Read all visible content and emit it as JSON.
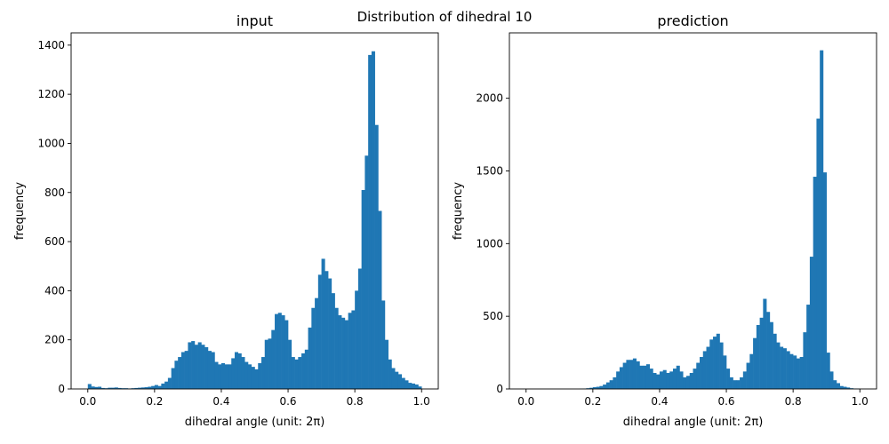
{
  "figure": {
    "title": "Distribution of dihedral 10"
  },
  "colors": {
    "bar": "#1f77b4",
    "axis": "#000000",
    "background": "#ffffff"
  },
  "chart_data": [
    {
      "type": "bar",
      "title": "input",
      "xlabel": "dihedral angle (unit: 2π)",
      "ylabel": "frequency",
      "xlim": [
        -0.05,
        1.05
      ],
      "ylim": [
        0,
        1450
      ],
      "xticks": [
        0.0,
        0.2,
        0.4,
        0.6,
        0.8,
        1.0
      ],
      "xtick_labels": [
        "0.0",
        "0.2",
        "0.4",
        "0.6",
        "0.8",
        "1.0"
      ],
      "yticks": [
        0,
        200,
        400,
        600,
        800,
        1000,
        1200,
        1400
      ],
      "ytick_labels": [
        "0",
        "200",
        "400",
        "600",
        "800",
        "1000",
        "1200",
        "1400"
      ],
      "grid": false,
      "bin_range": [
        0,
        1
      ],
      "bins": 100,
      "values": [
        20,
        10,
        8,
        9,
        4,
        3,
        5,
        5,
        6,
        4,
        3,
        3,
        2,
        3,
        4,
        5,
        6,
        7,
        9,
        12,
        16,
        12,
        22,
        30,
        45,
        85,
        115,
        130,
        150,
        155,
        190,
        195,
        180,
        190,
        180,
        170,
        155,
        150,
        110,
        100,
        105,
        100,
        100,
        125,
        150,
        145,
        130,
        110,
        100,
        90,
        80,
        105,
        130,
        200,
        205,
        240,
        305,
        310,
        300,
        280,
        200,
        130,
        120,
        130,
        145,
        160,
        250,
        330,
        370,
        465,
        530,
        480,
        450,
        390,
        330,
        300,
        290,
        280,
        310,
        320,
        400,
        490,
        810,
        950,
        1360,
        1375,
        1075,
        725,
        360,
        200,
        120,
        85,
        70,
        60,
        45,
        35,
        25,
        22,
        18,
        10
      ]
    },
    {
      "type": "bar",
      "title": "prediction",
      "xlabel": "dihedral angle (unit: 2π)",
      "ylabel": "frequency",
      "xlim": [
        -0.05,
        1.05
      ],
      "ylim": [
        0,
        2450
      ],
      "xticks": [
        0.0,
        0.2,
        0.4,
        0.6,
        0.8,
        1.0
      ],
      "xtick_labels": [
        "0.0",
        "0.2",
        "0.4",
        "0.6",
        "0.8",
        "1.0"
      ],
      "yticks": [
        0,
        500,
        1000,
        1500,
        2000
      ],
      "ytick_labels": [
        "0",
        "500",
        "1000",
        "1500",
        "2000"
      ],
      "grid": false,
      "bin_range": [
        0,
        1
      ],
      "bins": 100,
      "values": [
        0,
        0,
        0,
        0,
        0,
        0,
        0,
        0,
        0,
        0,
        0,
        0,
        0,
        0,
        0,
        0,
        2,
        3,
        5,
        8,
        12,
        15,
        20,
        30,
        45,
        60,
        80,
        120,
        150,
        180,
        200,
        200,
        210,
        190,
        160,
        160,
        170,
        140,
        110,
        100,
        120,
        130,
        110,
        120,
        140,
        160,
        120,
        80,
        90,
        110,
        140,
        180,
        220,
        260,
        290,
        340,
        360,
        380,
        320,
        230,
        140,
        80,
        60,
        60,
        80,
        120,
        180,
        240,
        350,
        440,
        490,
        620,
        530,
        460,
        380,
        320,
        290,
        280,
        260,
        240,
        230,
        210,
        220,
        390,
        580,
        910,
        1460,
        1860,
        2330,
        1490,
        250,
        120,
        60,
        40,
        20,
        15,
        10,
        5,
        3,
        2
      ]
    }
  ]
}
